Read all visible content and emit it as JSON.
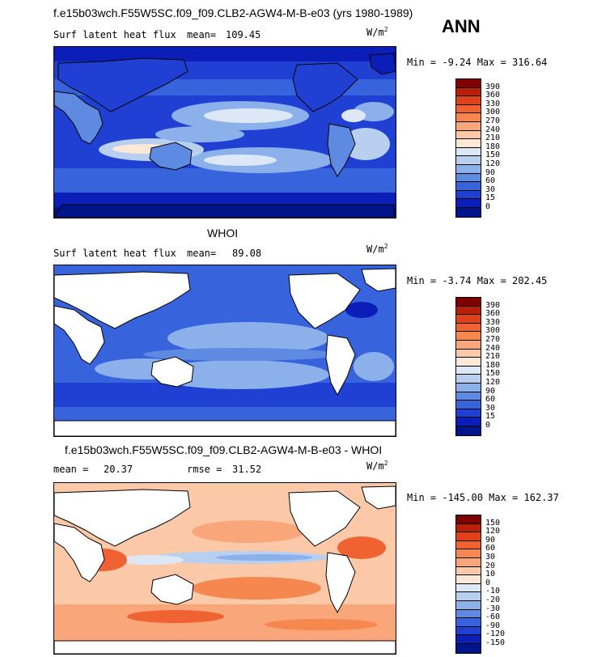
{
  "header": {
    "title": "f.e15b03wch.F55W5SC.f09_f09.CLB2-AGW4-M-B-e03 (yrs 1980-1989)",
    "season": "ANN"
  },
  "panels": [
    {
      "id": "model",
      "title": "",
      "label": "Surf latent heat flux",
      "stat1_label": "mean=",
      "stat1_value": "109.45",
      "stat2_label": "",
      "stat2_value": "",
      "unit": "W/m",
      "unit_exp": "2",
      "minmax": "Min =   -9.24 Max = 316.64",
      "levels": [
        "390",
        "360",
        "330",
        "300",
        "270",
        "240",
        "210",
        "180",
        "150",
        "120",
        "90",
        "60",
        "30",
        "15",
        "0"
      ],
      "colors": [
        "#7f0000",
        "#b8200a",
        "#e0401a",
        "#f06232",
        "#f5874f",
        "#f9a77a",
        "#fbc9a8",
        "#fde8d7",
        "#dde8f7",
        "#b8cff0",
        "#8cb0ea",
        "#5f8ae2",
        "#3763dc",
        "#1f40d2",
        "#0b1fb8",
        "#00158a"
      ]
    },
    {
      "id": "obs",
      "title": "WHOI",
      "label": "Surf latent heat flux",
      "stat1_label": "mean=",
      "stat1_value": "89.08",
      "stat2_label": "",
      "stat2_value": "",
      "unit": "W/m",
      "unit_exp": "2",
      "minmax": "Min =   -3.74 Max = 202.45",
      "levels": [
        "390",
        "360",
        "330",
        "300",
        "270",
        "240",
        "210",
        "180",
        "150",
        "120",
        "90",
        "60",
        "30",
        "15",
        "0"
      ],
      "colors": [
        "#7f0000",
        "#b8200a",
        "#e0401a",
        "#f06232",
        "#f5874f",
        "#f9a77a",
        "#fbc9a8",
        "#fde8d7",
        "#dde8f7",
        "#b8cff0",
        "#8cb0ea",
        "#5f8ae2",
        "#3763dc",
        "#1f40d2",
        "#0b1fb8",
        "#00158a"
      ]
    },
    {
      "id": "diff",
      "title": "f.e15b03wch.F55W5SC.f09_f09.CLB2-AGW4-M-B-e03 - WHOI",
      "label": "",
      "stat1_label": "mean =",
      "stat1_value": "20.37",
      "stat2_label": "rmse =",
      "stat2_value": "31.52",
      "unit": "W/m",
      "unit_exp": "2",
      "minmax": "Min = -145.00 Max = 162.37",
      "levels": [
        "150",
        "120",
        "90",
        "60",
        "30",
        "20",
        "10",
        "0",
        "-10",
        "-20",
        "-30",
        "-60",
        "-90",
        "-120",
        "-150"
      ],
      "colors": [
        "#7f0000",
        "#b8200a",
        "#e0401a",
        "#f06232",
        "#f5874f",
        "#f9a77a",
        "#fbc9a8",
        "#fde8d7",
        "#dde8f7",
        "#b8cff0",
        "#8cb0ea",
        "#5f8ae2",
        "#3763dc",
        "#1f40d2",
        "#0b1fb8",
        "#00158a"
      ]
    }
  ]
}
